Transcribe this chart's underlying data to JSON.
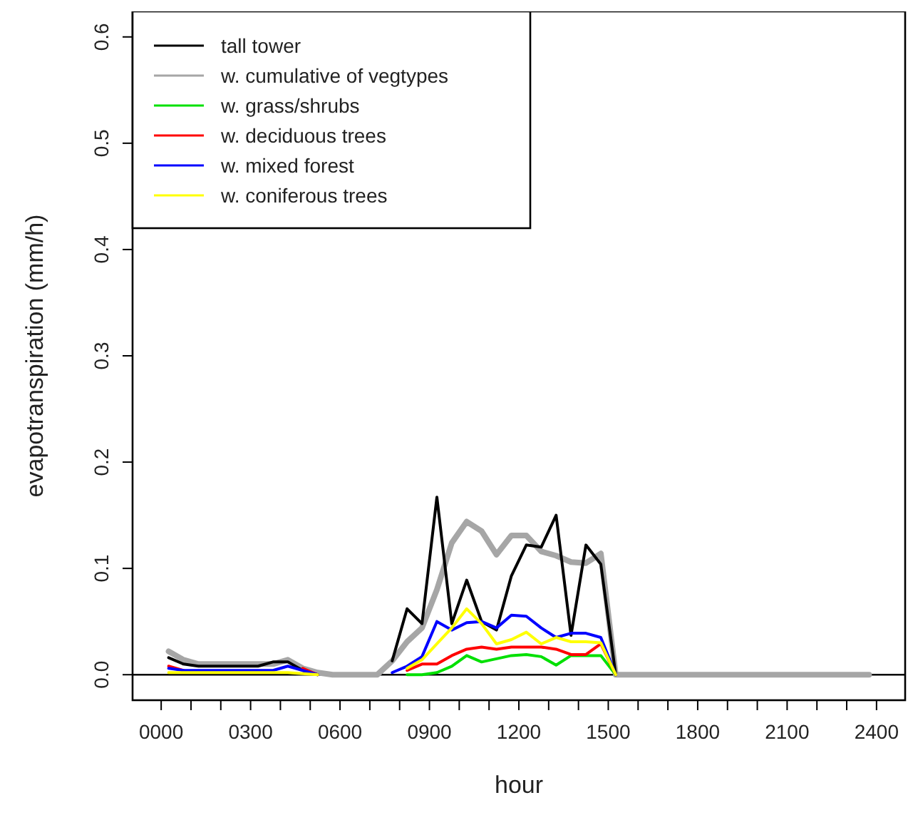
{
  "chart_data": {
    "type": "line",
    "xlabel": "hour",
    "ylabel": "evapotranspiration (mm/h)",
    "x": [
      25,
      75,
      125,
      175,
      225,
      275,
      325,
      375,
      425,
      475,
      525,
      575,
      625,
      675,
      725,
      775,
      825,
      875,
      925,
      975,
      1025,
      1075,
      1125,
      1175,
      1225,
      1275,
      1325,
      1375,
      1425,
      1475,
      1525,
      1575,
      1625,
      1675,
      1725,
      1775,
      1825,
      1875,
      1925,
      1975,
      2025,
      2075,
      2125,
      2175,
      2225,
      2275,
      2325,
      2375
    ],
    "xlim": [
      -96,
      2496
    ],
    "xticks": [
      {
        "value": 0,
        "label": "0000"
      },
      {
        "value": 100,
        "label": null
      },
      {
        "value": 200,
        "label": null
      },
      {
        "value": 300,
        "label": "0300"
      },
      {
        "value": 400,
        "label": null
      },
      {
        "value": 500,
        "label": null
      },
      {
        "value": 600,
        "label": "0600"
      },
      {
        "value": 700,
        "label": null
      },
      {
        "value": 800,
        "label": null
      },
      {
        "value": 900,
        "label": "0900"
      },
      {
        "value": 1000,
        "label": null
      },
      {
        "value": 1100,
        "label": null
      },
      {
        "value": 1200,
        "label": "1200"
      },
      {
        "value": 1300,
        "label": null
      },
      {
        "value": 1400,
        "label": null
      },
      {
        "value": 1500,
        "label": "1500"
      },
      {
        "value": 1600,
        "label": null
      },
      {
        "value": 1700,
        "label": null
      },
      {
        "value": 1800,
        "label": "1800"
      },
      {
        "value": 1900,
        "label": null
      },
      {
        "value": 2000,
        "label": null
      },
      {
        "value": 2100,
        "label": "2100"
      },
      {
        "value": 2200,
        "label": null
      },
      {
        "value": 2300,
        "label": null
      },
      {
        "value": 2400,
        "label": "2400"
      }
    ],
    "ylim": [
      -0.024,
      0.624
    ],
    "yticks": [
      {
        "value": 0,
        "label": "0.0"
      },
      {
        "value": 0.1,
        "label": "0.1"
      },
      {
        "value": 0.2,
        "label": "0.2"
      },
      {
        "value": 0.3,
        "label": "0.3"
      },
      {
        "value": 0.4,
        "label": "0.4"
      },
      {
        "value": 0.5,
        "label": "0.5"
      },
      {
        "value": 0.6,
        "label": "0.6"
      }
    ],
    "grid": false,
    "legend": "top left",
    "marker": "none",
    "line_style": "solid",
    "ref_lines": [
      {
        "axis": "y",
        "value": 0,
        "color": "#000000"
      }
    ],
    "series": [
      {
        "name": "tall tower",
        "color": "#000000",
        "values": [
          0.016,
          0.01,
          0.008,
          0.008,
          0.008,
          0.008,
          0.008,
          0.012,
          0.012,
          0.004,
          0,
          null,
          null,
          null,
          null,
          0.013,
          0.062,
          0.048,
          0.167,
          0.048,
          0.089,
          0.05,
          0.042,
          0.093,
          0.122,
          0.12,
          0.15,
          0.037,
          0.122,
          0.104,
          0,
          null,
          null,
          null,
          null,
          null,
          null,
          null,
          null,
          null,
          null,
          null,
          null,
          null,
          null,
          null,
          null,
          null
        ]
      },
      {
        "name": "w. cumulative of vegtypes",
        "color": "#a6a6a6",
        "values": [
          0.022,
          0.014,
          0.01,
          0.01,
          0.01,
          0.01,
          0.01,
          0.01,
          0.014,
          0.006,
          0.002,
          0,
          0,
          0,
          0,
          0.013,
          0.031,
          0.044,
          0.08,
          0.124,
          0.144,
          0.135,
          0.113,
          0.131,
          0.131,
          0.116,
          0.112,
          0.106,
          0.105,
          0.114,
          0,
          0,
          0,
          0,
          0,
          0,
          0,
          0,
          0,
          0,
          0,
          0,
          0,
          0,
          0,
          0,
          0,
          0
        ]
      },
      {
        "name": "w. grass/shrubs",
        "color": "#00e000",
        "values": [
          null,
          null,
          null,
          null,
          null,
          null,
          null,
          null,
          null,
          null,
          null,
          null,
          null,
          null,
          null,
          null,
          0,
          0,
          0.002,
          0.008,
          0.018,
          0.012,
          0.015,
          0.018,
          0.019,
          0.017,
          0.009,
          0.018,
          0.018,
          0.018,
          0,
          null,
          null,
          null,
          null,
          null,
          null,
          null,
          null,
          null,
          null,
          null,
          null,
          null,
          null,
          null,
          null,
          null
        ]
      },
      {
        "name": "w. deciduous trees",
        "color": "#ff0000",
        "values": [
          0.008,
          0.004,
          null,
          null,
          null,
          null,
          null,
          null,
          null,
          0.006,
          0,
          null,
          null,
          null,
          null,
          null,
          0.004,
          0.01,
          0.01,
          0.018,
          0.024,
          0.026,
          0.024,
          0.026,
          0.026,
          0.026,
          0.024,
          0.019,
          0.019,
          0.029,
          0,
          null,
          null,
          null,
          null,
          null,
          null,
          null,
          null,
          null,
          null,
          null,
          null,
          null,
          null,
          null,
          null,
          null
        ]
      },
      {
        "name": "w. mixed forest",
        "color": "#0000ff",
        "values": [
          0.006,
          0.004,
          0.004,
          0.004,
          0.004,
          0.004,
          0.004,
          0.004,
          0.008,
          0.004,
          0,
          null,
          null,
          null,
          null,
          0.002,
          0.008,
          0.017,
          0.05,
          0.042,
          0.049,
          0.05,
          0.044,
          0.056,
          0.055,
          0.044,
          0.035,
          0.039,
          0.039,
          0.035,
          0,
          null,
          null,
          null,
          null,
          null,
          null,
          null,
          null,
          null,
          null,
          null,
          null,
          null,
          null,
          null,
          null,
          null
        ]
      },
      {
        "name": "w. coniferous trees",
        "color": "#ffff00",
        "values": [
          0.002,
          0.002,
          0.002,
          0.002,
          0.002,
          0.002,
          0.002,
          0.002,
          0.002,
          0.001,
          0,
          null,
          null,
          null,
          null,
          null,
          0.006,
          0.014,
          0.029,
          0.044,
          0.062,
          0.048,
          0.029,
          0.033,
          0.04,
          0.029,
          0.035,
          0.031,
          0.031,
          0.03,
          0,
          null,
          null,
          null,
          null,
          null,
          null,
          null,
          null,
          null,
          null,
          null,
          null,
          null,
          null,
          null,
          null,
          null
        ]
      }
    ]
  }
}
